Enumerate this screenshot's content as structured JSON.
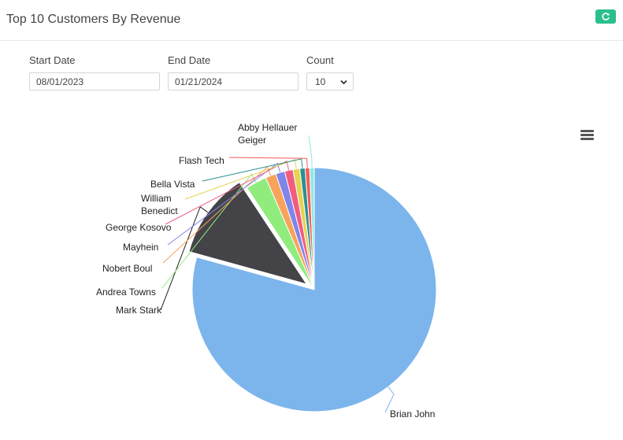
{
  "header": {
    "title": "Top 10 Customers By Revenue",
    "refresh_icon": "refresh-icon"
  },
  "filters": {
    "start_label": "Start Date",
    "start_value": "08/01/2023",
    "end_label": "End Date",
    "end_value": "01/21/2024",
    "count_label": "Count",
    "count_value": "10"
  },
  "chart_menu": {
    "icon": "hamburger-menu-icon"
  },
  "chart_data": {
    "type": "pie",
    "series": [
      {
        "name": "Brian John",
        "share": 0.793,
        "color": "#7cb5ec"
      },
      {
        "name": "Mark Stark",
        "share": 0.114,
        "color": "#434348"
      },
      {
        "name": "Andrea Towns",
        "share": 0.028,
        "color": "#90ed7d"
      },
      {
        "name": "Nobert Boul",
        "share": 0.014,
        "color": "#f7a35c"
      },
      {
        "name": "Mayhein",
        "share": 0.012,
        "color": "#8085e9"
      },
      {
        "name": "George Kosovo",
        "share": 0.011,
        "color": "#f15c80"
      },
      {
        "name": "William Benedict",
        "share": 0.009,
        "color": "#e4d354"
      },
      {
        "name": "Bella Vista",
        "share": 0.007,
        "color": "#2b908f"
      },
      {
        "name": "Flash Tech",
        "share": 0.006,
        "color": "#f45b5b"
      },
      {
        "name": "Abby Hellauer Geiger",
        "share": 0.006,
        "color": "#91e8e1"
      }
    ]
  }
}
